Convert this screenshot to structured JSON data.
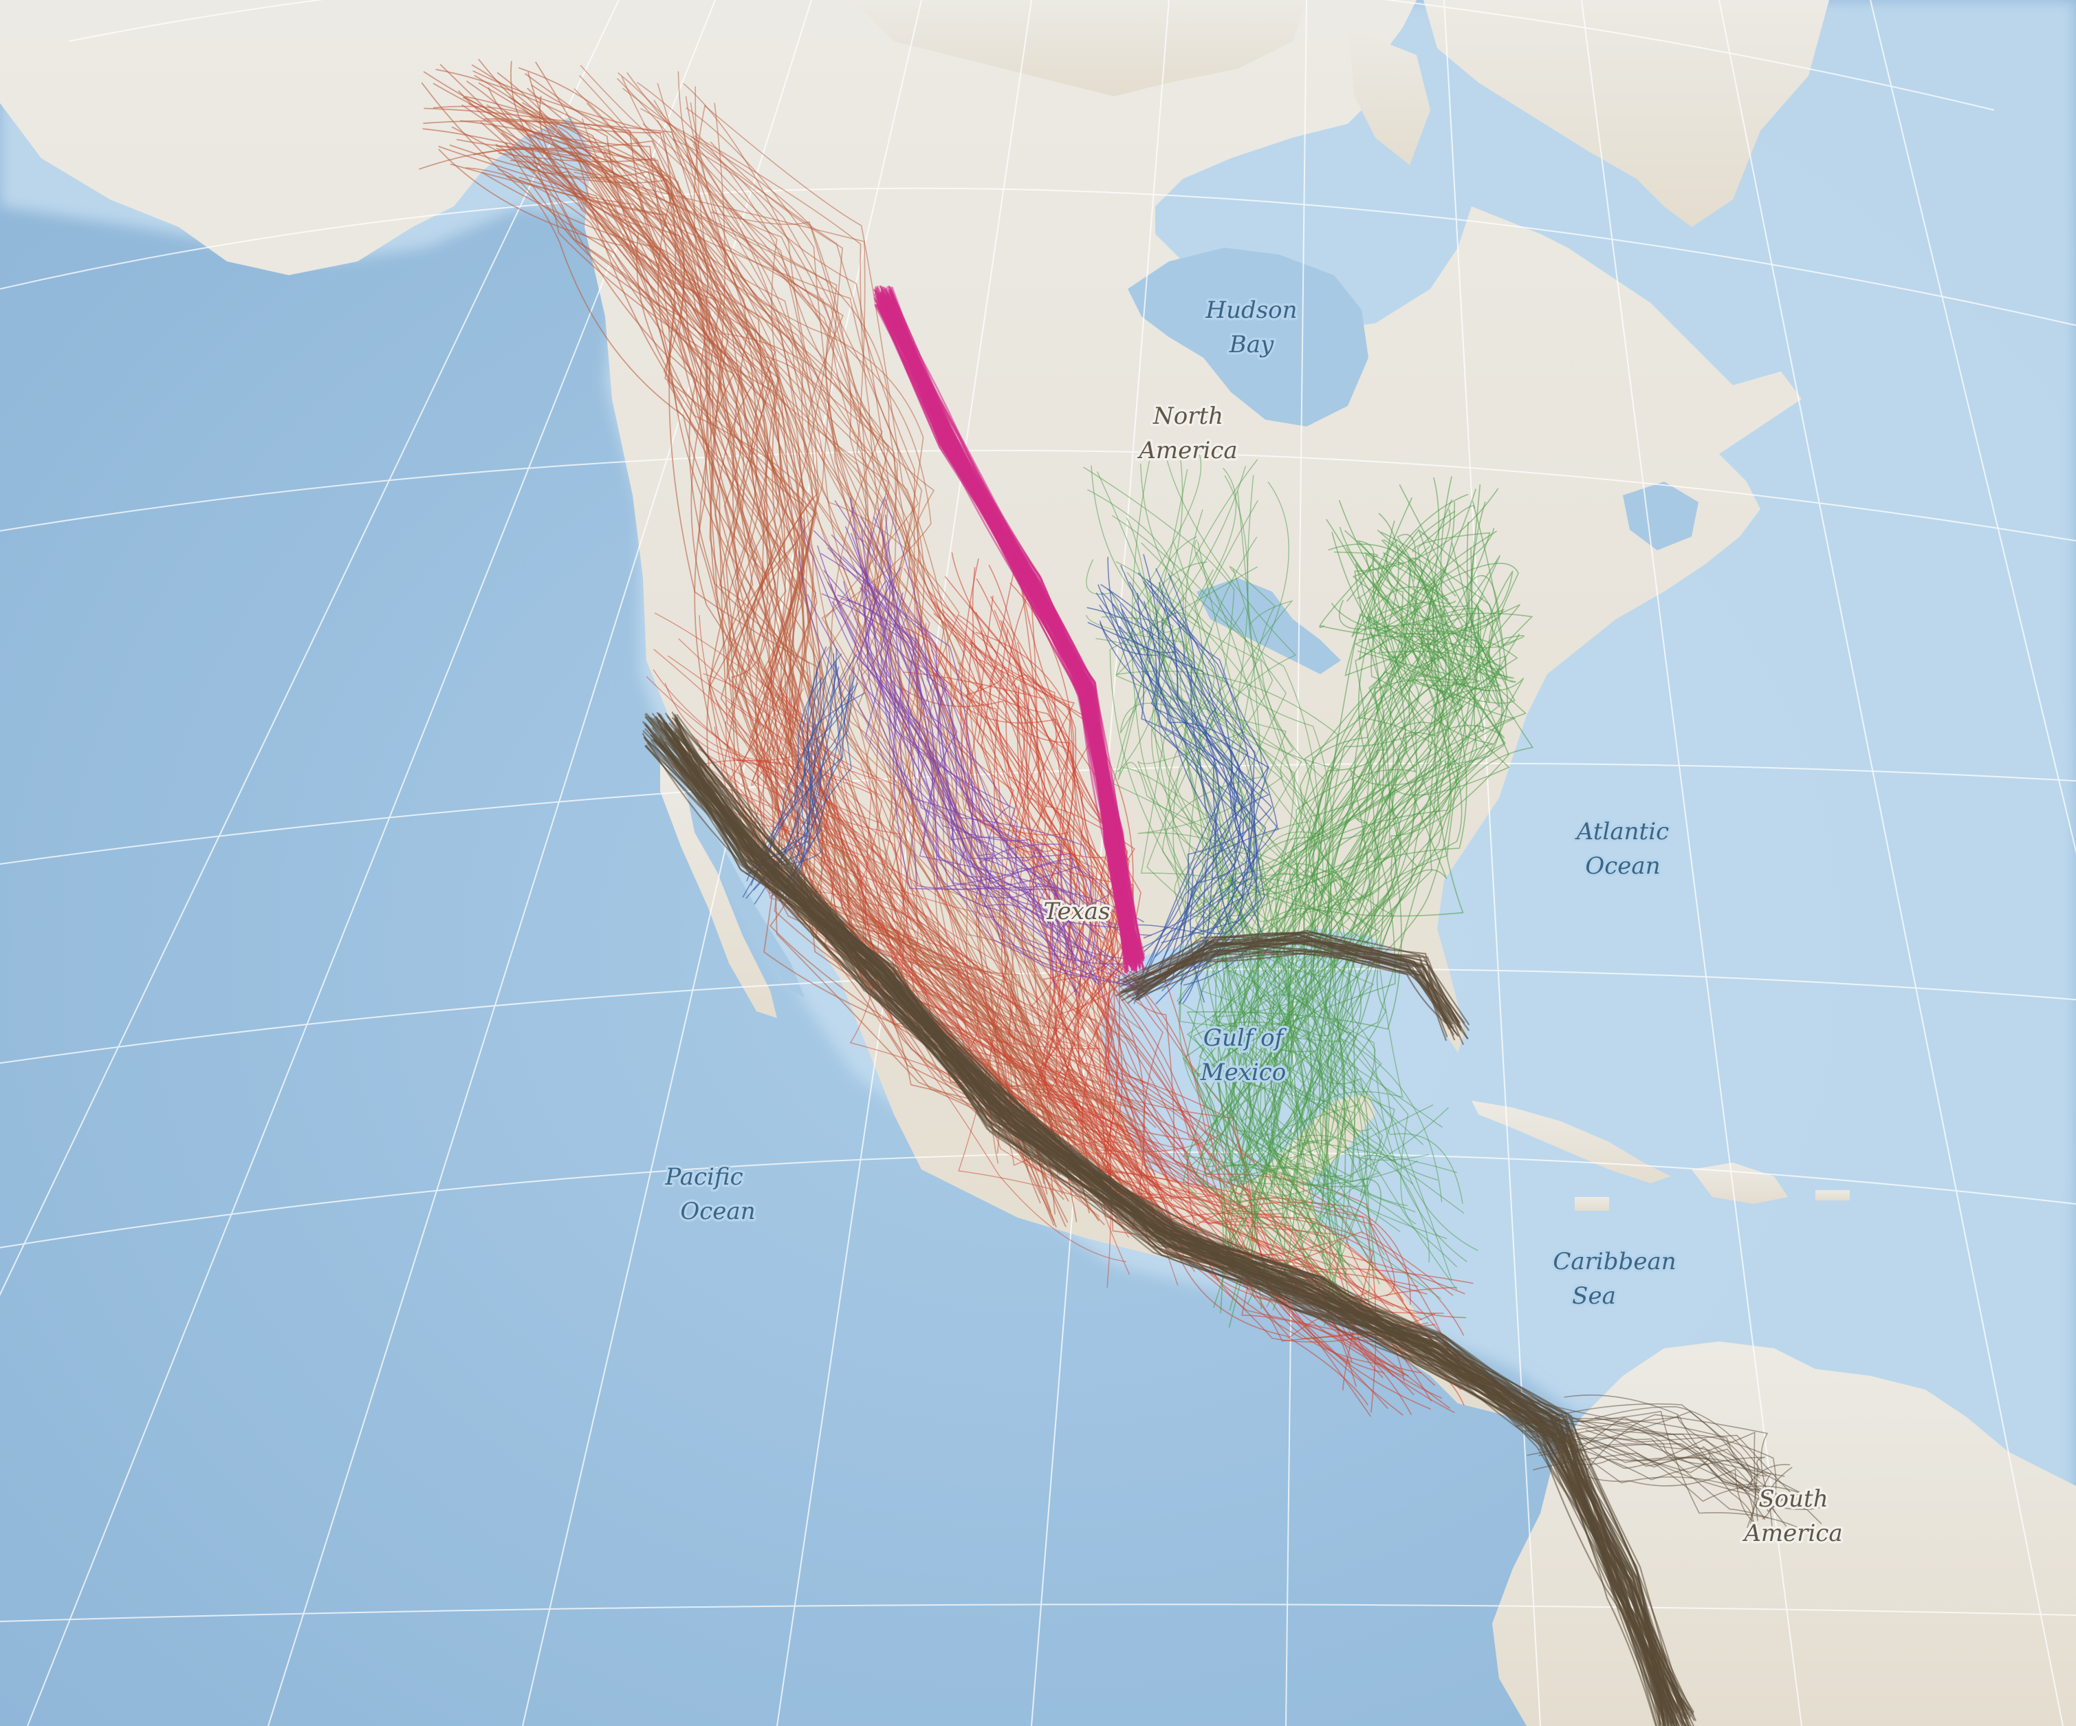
{
  "colors": {
    "ocean": "#9ec2df",
    "ocean_light": "#b8d5ec",
    "land": "#e7e2d6",
    "graticule": "#ffffff",
    "route_brown": "#5a4a37",
    "route_red": "#d0412f",
    "route_rust": "#b95a3a",
    "route_green": "#4a9a45",
    "route_blue": "#3454a8",
    "route_purple": "#7a3fb0",
    "route_magenta": "#d12a86"
  },
  "labels": {
    "hudson_bay": [
      "Hudson",
      "Bay"
    ],
    "north_america": [
      "North",
      "America"
    ],
    "atlantic_ocean": [
      "Atlantic",
      "Ocean"
    ],
    "gulf_of_mexico": [
      "Gulf of",
      "Mexico"
    ],
    "pacific_ocean": [
      "Pacific",
      "Ocean"
    ],
    "caribbean_sea": [
      "Caribbean",
      "Sea"
    ],
    "south_america": [
      "South",
      "America"
    ],
    "texas": [
      "Texas"
    ]
  },
  "map_data": {
    "type": "migration-tracks",
    "route_groups": [
      {
        "id": "pacific-flyway",
        "color_key": "route_brown"
      },
      {
        "id": "western-interior",
        "color_key": "route_rust"
      },
      {
        "id": "central-red",
        "color_key": "route_red"
      },
      {
        "id": "eastern-green",
        "color_key": "route_green"
      },
      {
        "id": "central-blue",
        "color_key": "route_blue"
      },
      {
        "id": "southwest-purple",
        "color_key": "route_purple"
      },
      {
        "id": "central-magenta",
        "color_key": "route_magenta"
      }
    ]
  }
}
